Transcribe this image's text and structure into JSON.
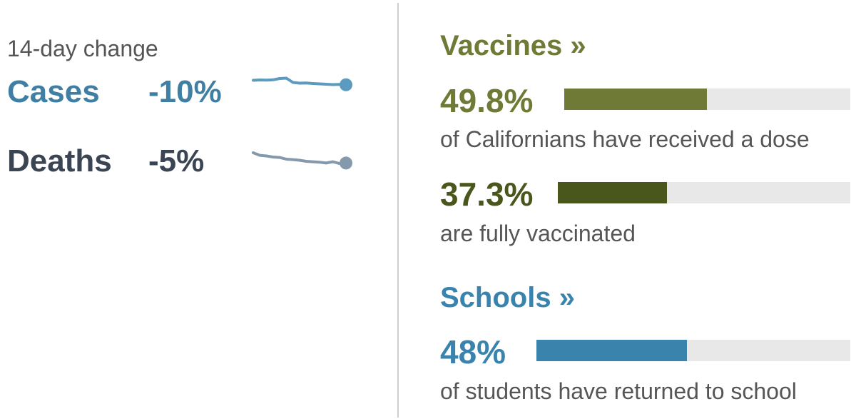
{
  "trend": {
    "subtitle": "14-day change",
    "metrics": [
      {
        "label": "Cases",
        "change": "-10%",
        "color": "#3f7fa3",
        "line_color": "#5a9bbf",
        "series": [
          0.5,
          0.48,
          0.49,
          0.47,
          0.4,
          0.38,
          0.62,
          0.66,
          0.65,
          0.68,
          0.7,
          0.72,
          0.74,
          0.73,
          0.75
        ]
      },
      {
        "label": "Deaths",
        "change": "-5%",
        "color": "#3a4452",
        "line_color": "#8499ac",
        "series": [
          0.3,
          0.42,
          0.45,
          0.5,
          0.52,
          0.6,
          0.62,
          0.65,
          0.7,
          0.72,
          0.74,
          0.78,
          0.72,
          0.8,
          0.78
        ]
      }
    ]
  },
  "vaccines": {
    "heading": "Vaccines »",
    "color": "#6f7a37",
    "stats": [
      {
        "value": "49.8%",
        "fraction": 0.498,
        "desc": "of Californians have received a dose",
        "color": "#6f7a37"
      },
      {
        "value": "37.3%",
        "fraction": 0.373,
        "desc": "are fully vaccinated",
        "color": "#4a571c"
      }
    ]
  },
  "schools": {
    "heading": "Schools »",
    "color": "#3a83ad",
    "stats": [
      {
        "value": "48%",
        "fraction": 0.48,
        "desc": "of students have returned to school",
        "color": "#3a83ad"
      }
    ]
  }
}
